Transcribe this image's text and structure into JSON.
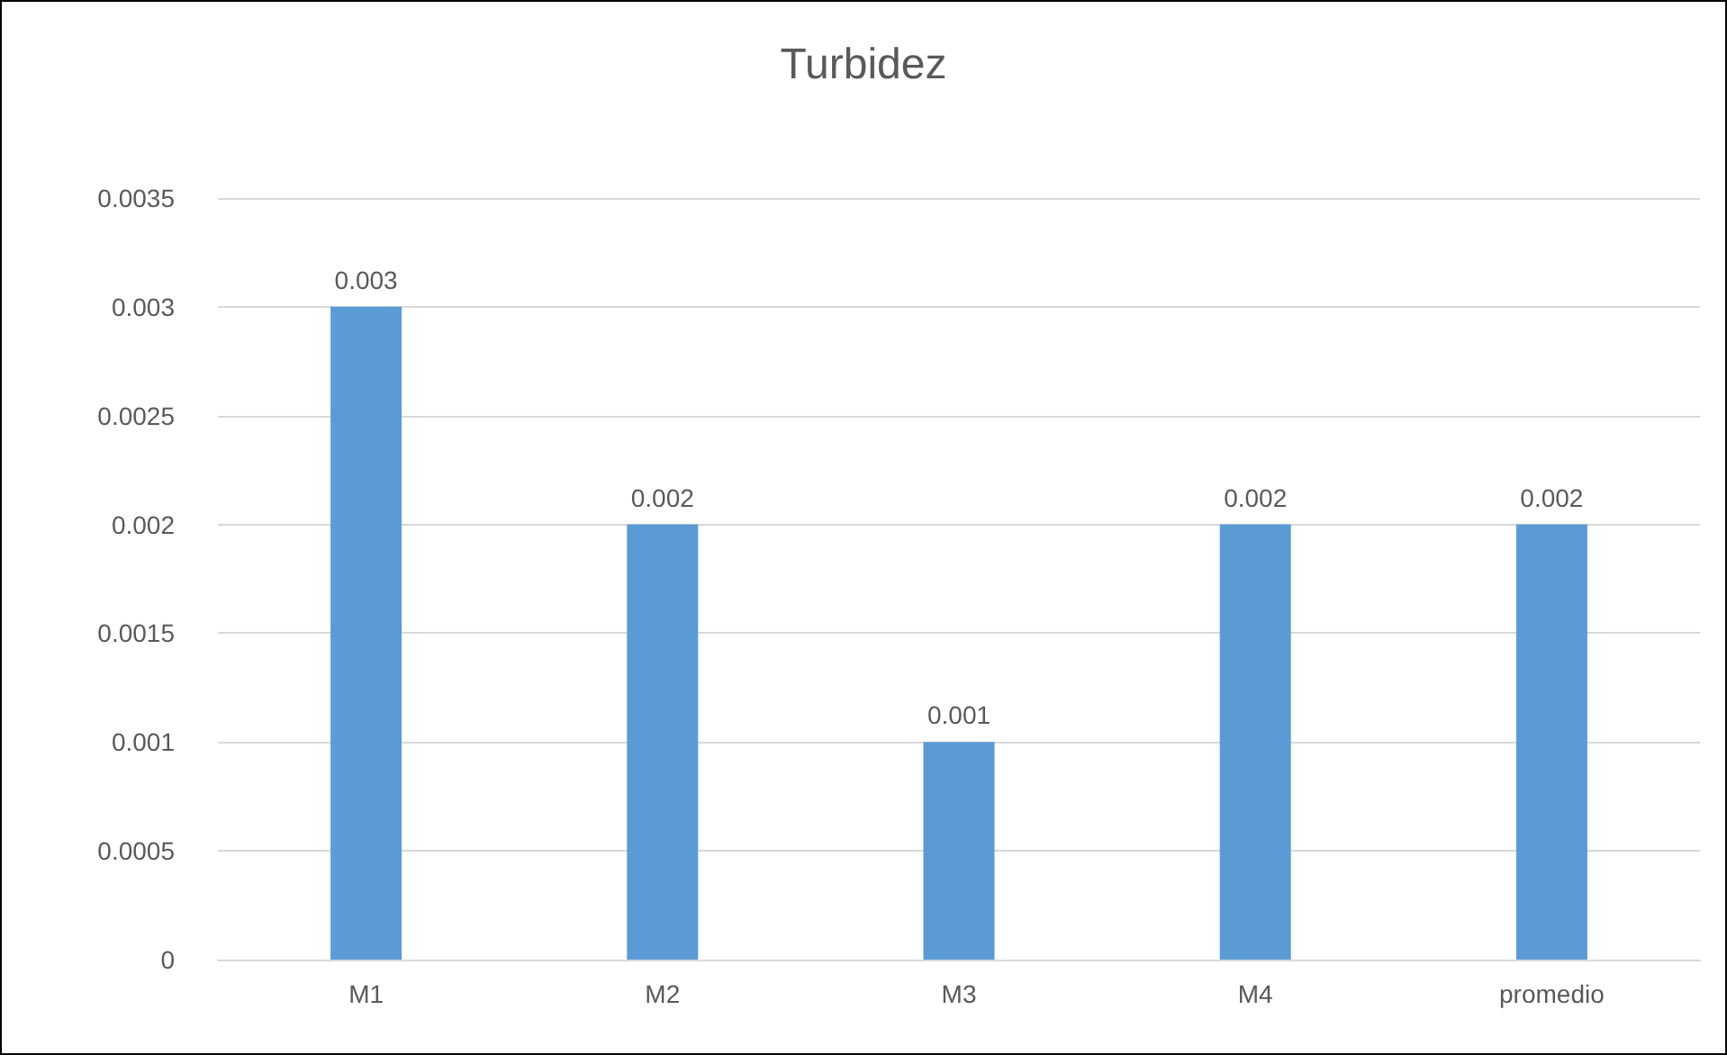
{
  "chart_data": {
    "type": "bar",
    "title": "Turbidez",
    "categories": [
      "M1",
      "M2",
      "M3",
      "M4",
      "promedio"
    ],
    "values": [
      0.003,
      0.002,
      0.001,
      0.002,
      0.002
    ],
    "color": "#5b9bd5",
    "ylim": [
      0,
      0.0035
    ],
    "yticks": [
      0,
      0.0005,
      0.001,
      0.0015,
      0.002,
      0.0025,
      0.003,
      0.0035
    ],
    "grid": "y",
    "data_labels": true
  }
}
